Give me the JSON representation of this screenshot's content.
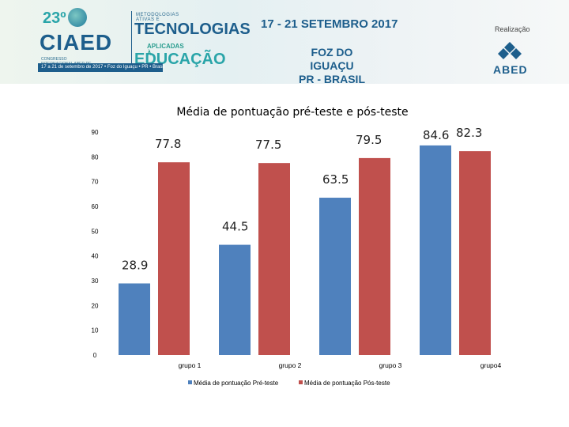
{
  "banner": {
    "edition": "23º",
    "event_name": "CIAED",
    "event_subtitle": "CONGRESSO INTERNACIONAL ABED DE EDUCAÇÃO A DISTÂNCIA",
    "theme_top": "METODOLOGIAS ATIVAS E",
    "theme_main": "TECNOLOGIAS",
    "theme_middle": "APLICADAS À",
    "theme_bottom": "EDUCAÇÃO",
    "date_bar": "17 a 21 de setembro de 2017 • Foz do Iguaçu • PR • Brasil",
    "event_dates": "17 - 21 SETEMBRO 2017",
    "event_place_line1": "FOZ DO IGUAÇU",
    "event_place_line2": "PR - BRASIL",
    "organizer_label": "Realização",
    "organizer_name": "ABED"
  },
  "colors": {
    "series1": "#4f81bd",
    "series2": "#c0504d",
    "brand": "#1d5e8c"
  },
  "chart_data": {
    "type": "bar",
    "title": "Média de pontuação pré-teste e pós-teste",
    "categories": [
      "grupo 1",
      "grupo 2",
      "grupo 3",
      "grupo4"
    ],
    "series": [
      {
        "name": "Média de pontuação Pré-teste",
        "values": [
          28.9,
          44.5,
          63.5,
          84.6
        ]
      },
      {
        "name": "Média de pontuação Pós-teste",
        "values": [
          77.8,
          77.5,
          79.5,
          82.3
        ]
      }
    ],
    "y_ticks": [
      "0",
      "10",
      "20",
      "30",
      "40",
      "50",
      "60",
      "70",
      "80",
      "90"
    ],
    "ylim": [
      0,
      90
    ],
    "xlabel": "",
    "ylabel": "",
    "legend_position": "bottom",
    "grid": false
  }
}
